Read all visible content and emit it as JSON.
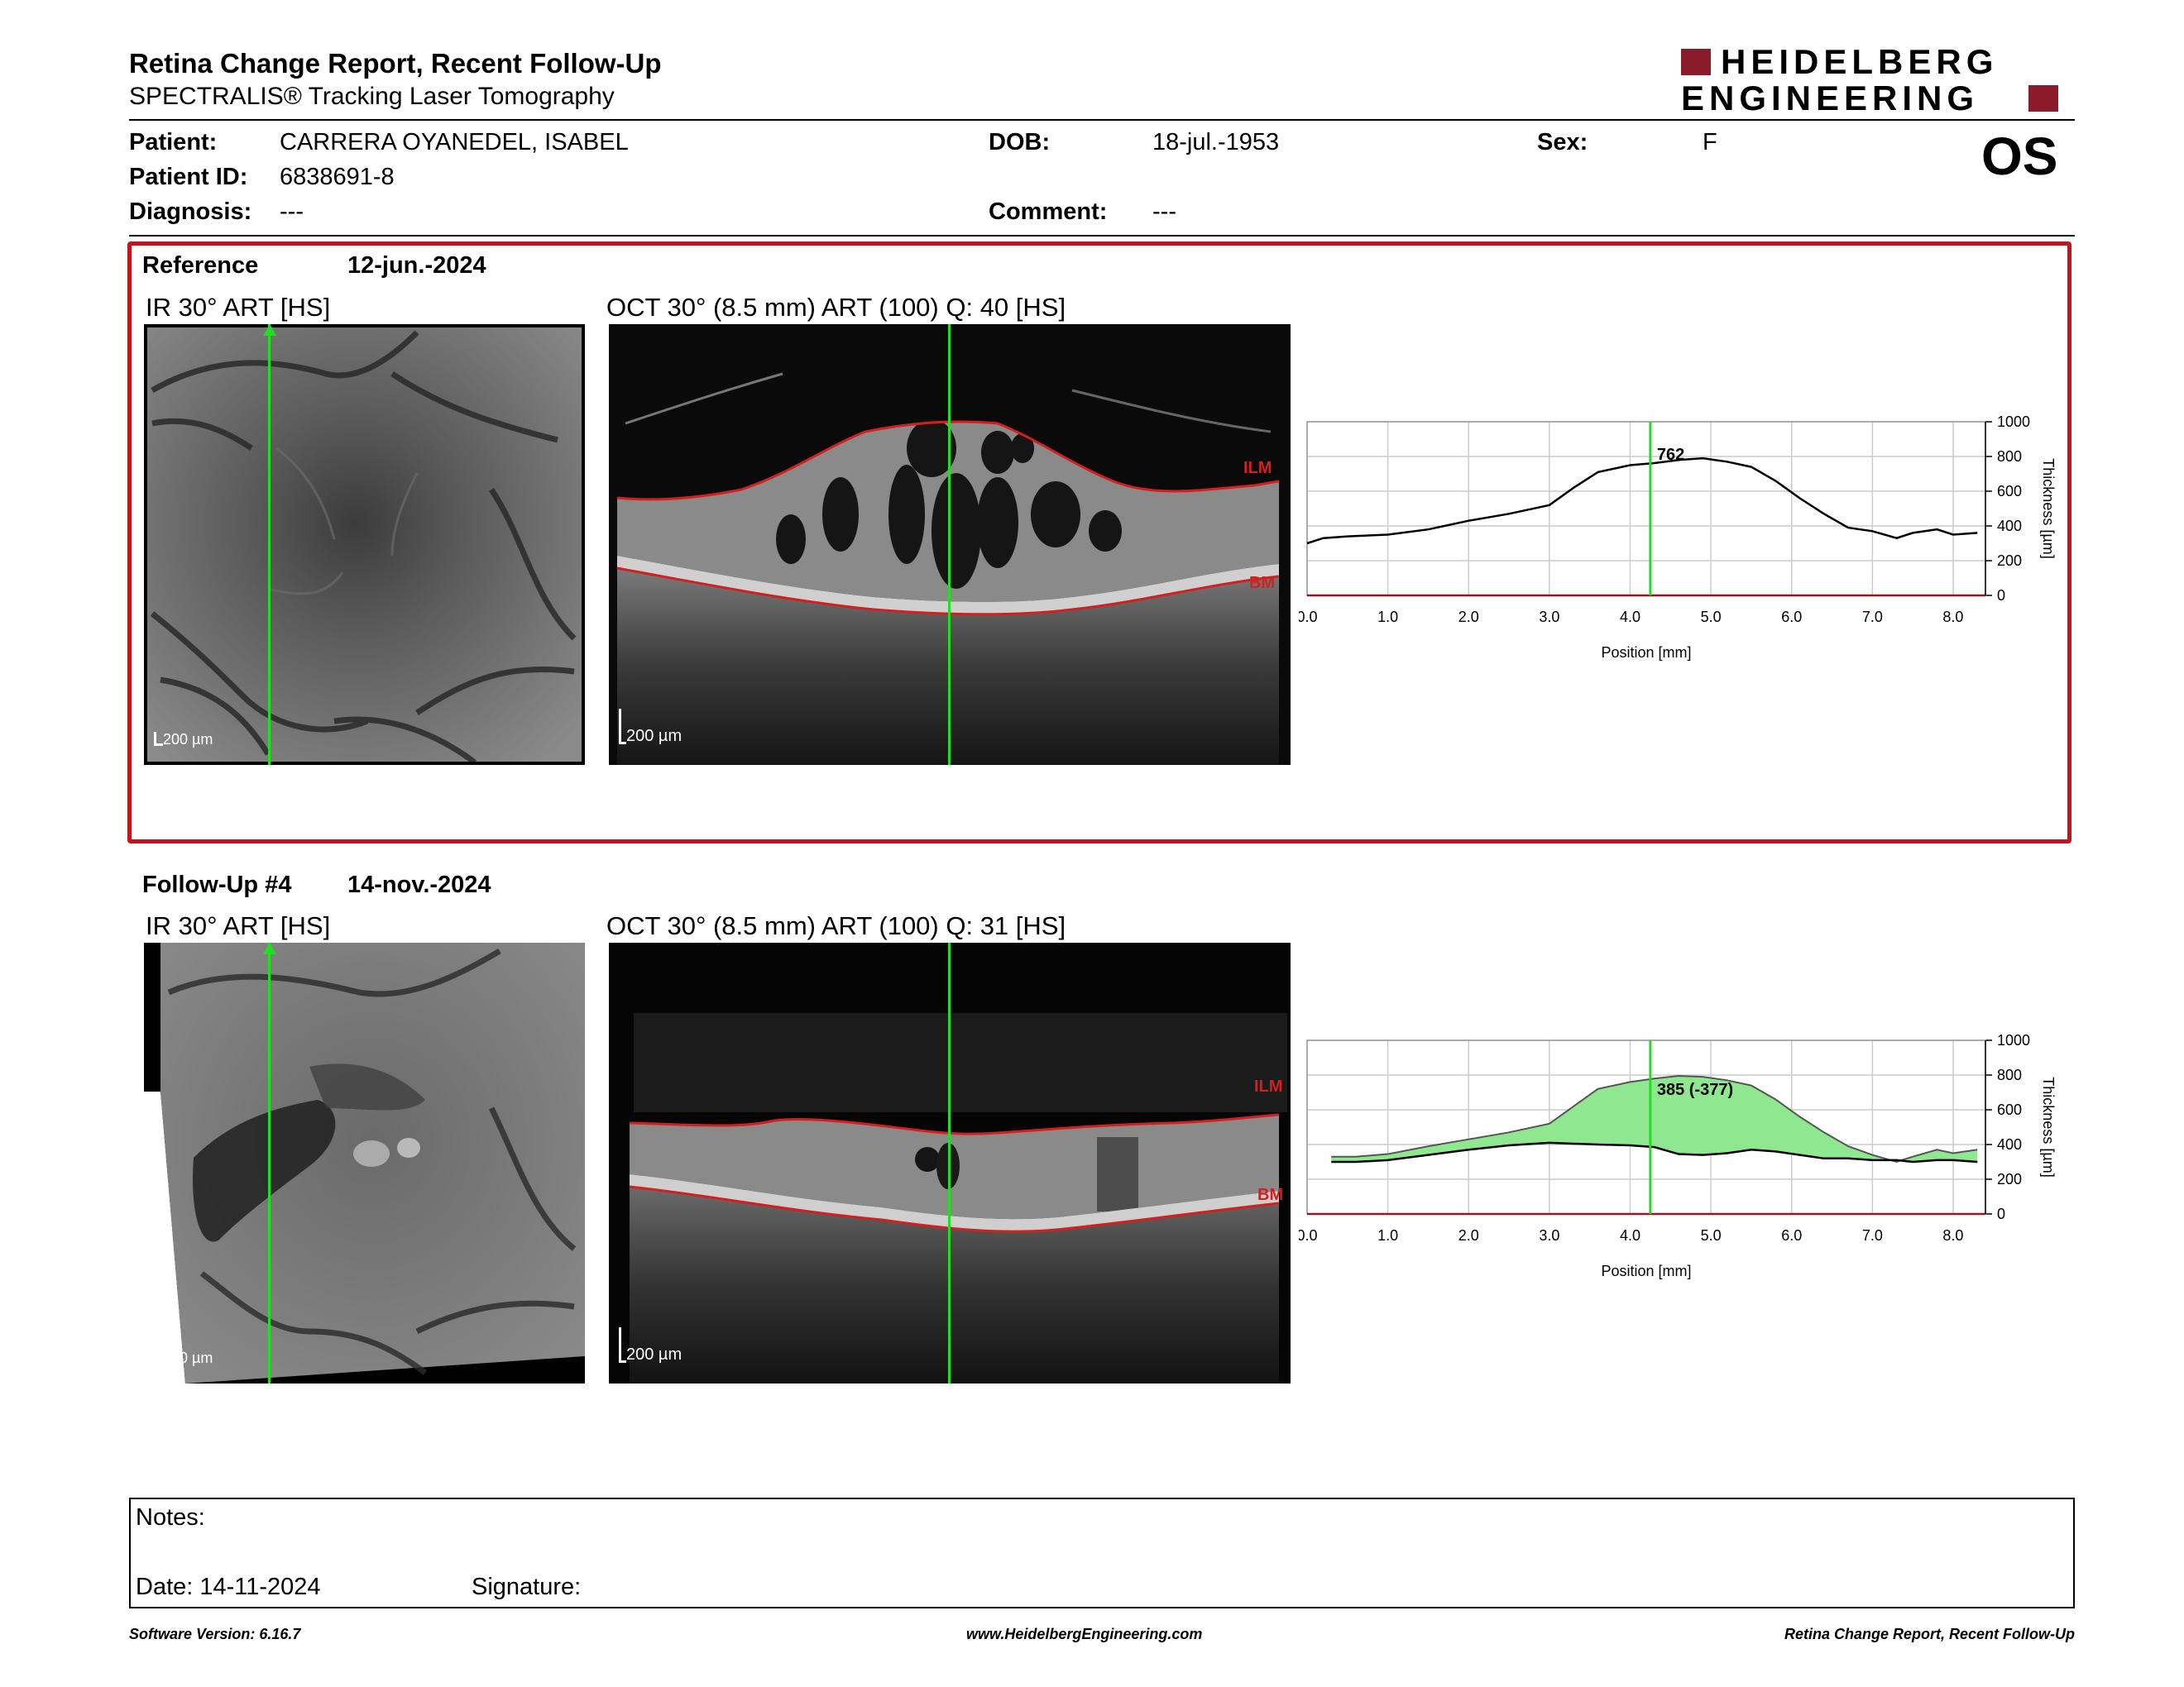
{
  "header": {
    "title": "Retina Change Report, Recent Follow-Up",
    "subtitle": "SPECTRALIS® Tracking Laser Tomography",
    "brand_line1": "HEIDELBERG",
    "brand_line2": "ENGINEERING",
    "eye": "OS"
  },
  "patient": {
    "patient_label": "Patient:",
    "patient_value": "CARRERA OYANEDEL, ISABEL",
    "dob_label": "DOB:",
    "dob_value": "18-jul.-1953",
    "sex_label": "Sex:",
    "sex_value": "F",
    "id_label": "Patient ID:",
    "id_value": "6838691-8",
    "diagnosis_label": "Diagnosis:",
    "diagnosis_value": "---",
    "comment_label": "Comment:",
    "comment_value": "---"
  },
  "reference": {
    "label": "Reference",
    "date": "12-jun.-2024",
    "ir_label": "IR 30° ART [HS]",
    "oct_label": "OCT 30° (8.5 mm) ART (100) Q: 40 [HS]",
    "scale": "200 µm",
    "ilm": "ILM",
    "bm": "BM"
  },
  "followup": {
    "label": "Follow-Up #4",
    "date": "14-nov.-2024",
    "ir_label": "IR 30° ART [HS]",
    "oct_label": "OCT 30° (8.5 mm) ART (100) Q: 31 [HS]",
    "scale": "200 µm",
    "ilm": "ILM",
    "bm": "BM"
  },
  "notes": {
    "notes_label": "Notes:",
    "date_label": "Date: 14-11-2024",
    "signature_label": "Signature:"
  },
  "footer": {
    "software": "Software Version: 6.16.7",
    "website": "www.HeidelbergEngineering.com",
    "report_name": "Retina Change Report, Recent Follow-Up"
  },
  "colors": {
    "brand_red": "#8b1a2a",
    "frame_red": "#c0151d",
    "marker_green": "#22dd22",
    "segmentation_red": "#d41f1f",
    "fill_green": "#8fe88f"
  },
  "chart_data": [
    {
      "type": "line",
      "xlabel": "Position [mm]",
      "ylabel": "Thickness [µm]",
      "xlim": [
        0,
        8.4
      ],
      "ylim": [
        0,
        1000
      ],
      "xticks": [
        "0.0",
        "1.0",
        "2.0",
        "3.0",
        "4.0",
        "5.0",
        "6.0",
        "7.0",
        "8.0"
      ],
      "yticks": [
        "0",
        "200",
        "400",
        "600",
        "800",
        "1000"
      ],
      "grid": true,
      "marker_x": 4.25,
      "annotation": "762",
      "series": [
        {
          "x": [
            0.0,
            0.2,
            0.5,
            1.0,
            1.5,
            2.0,
            2.5,
            3.0,
            3.3,
            3.6,
            4.0,
            4.3,
            4.6,
            4.9,
            5.2,
            5.5,
            5.8,
            6.1,
            6.4,
            6.7,
            7.0,
            7.3,
            7.5,
            7.8,
            8.0,
            8.3
          ],
          "y": [
            300,
            330,
            340,
            350,
            380,
            430,
            470,
            520,
            620,
            710,
            750,
            762,
            780,
            790,
            770,
            740,
            660,
            560,
            470,
            390,
            370,
            330,
            360,
            380,
            350,
            360
          ]
        }
      ]
    },
    {
      "type": "area",
      "xlabel": "Position [mm]",
      "ylabel": "Thickness [µm]",
      "xlim": [
        0,
        8.4
      ],
      "ylim": [
        0,
        1000
      ],
      "xticks": [
        "0.0",
        "1.0",
        "2.0",
        "3.0",
        "4.0",
        "5.0",
        "6.0",
        "7.0",
        "8.0"
      ],
      "yticks": [
        "0",
        "200",
        "400",
        "600",
        "800",
        "1000"
      ],
      "grid": true,
      "marker_x": 4.25,
      "annotation": "385 (-377)",
      "series": [
        {
          "x": [
            0.3,
            0.6,
            1.0,
            1.5,
            2.0,
            2.5,
            3.0,
            3.3,
            3.6,
            4.0,
            4.3,
            4.6,
            4.9,
            5.2,
            5.5,
            5.8,
            6.1,
            6.4,
            6.7,
            7.0,
            7.3,
            7.5,
            7.8,
            8.0,
            8.3
          ],
          "y": [
            330,
            330,
            345,
            390,
            430,
            470,
            520,
            620,
            720,
            760,
            780,
            795,
            790,
            770,
            740,
            660,
            560,
            470,
            390,
            340,
            300,
            330,
            370,
            350,
            370
          ]
        },
        {
          "x": [
            0.3,
            0.6,
            1.0,
            1.5,
            2.0,
            2.5,
            3.0,
            3.3,
            3.6,
            4.0,
            4.3,
            4.6,
            4.9,
            5.2,
            5.5,
            5.8,
            6.1,
            6.4,
            6.7,
            7.0,
            7.3,
            7.5,
            7.8,
            8.0,
            8.3
          ],
          "y": [
            300,
            300,
            310,
            340,
            370,
            395,
            410,
            405,
            400,
            395,
            385,
            345,
            340,
            350,
            370,
            360,
            340,
            320,
            320,
            310,
            310,
            300,
            310,
            310,
            300
          ]
        }
      ]
    }
  ]
}
